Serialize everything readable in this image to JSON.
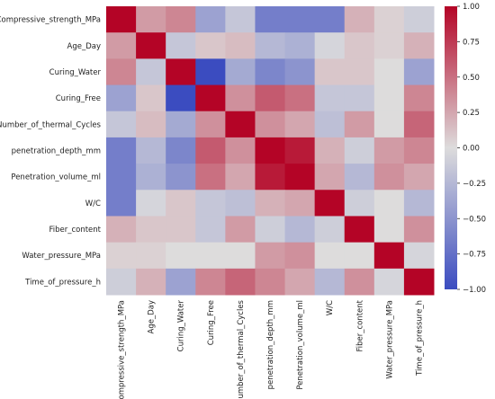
{
  "chart_data": {
    "type": "heatmap",
    "title": "",
    "xlabel": "",
    "ylabel": "",
    "variables": [
      "Compressive_strength_MPa",
      "Age_Day",
      "Curing_Water",
      "Curing_Free",
      "Number_of_thermal_Cycles",
      "penetration_depth_mm",
      "Penetration_volume_ml",
      "W/C",
      "Fiber_content",
      "Water_pressure_MPa",
      "Time_of_pressure_h"
    ],
    "matrix": [
      [
        1.0,
        0.3,
        0.4,
        -0.4,
        -0.15,
        -0.65,
        -0.65,
        -0.65,
        0.2,
        0.05,
        -0.1
      ],
      [
        0.3,
        1.0,
        -0.15,
        0.1,
        0.15,
        -0.25,
        -0.3,
        -0.05,
        0.1,
        0.05,
        0.2
      ],
      [
        0.4,
        -0.15,
        1.0,
        -1.0,
        -0.35,
        -0.6,
        -0.5,
        0.1,
        0.1,
        0.0,
        -0.4
      ],
      [
        -0.4,
        0.1,
        -1.0,
        1.0,
        0.35,
        0.6,
        0.5,
        -0.15,
        -0.15,
        0.0,
        0.4
      ],
      [
        -0.15,
        0.15,
        -0.35,
        0.35,
        1.0,
        0.35,
        0.25,
        -0.2,
        0.3,
        0.0,
        0.55
      ],
      [
        -0.65,
        -0.25,
        -0.6,
        0.6,
        0.35,
        1.0,
        0.9,
        0.2,
        -0.1,
        0.3,
        0.4
      ],
      [
        -0.65,
        -0.3,
        -0.5,
        0.5,
        0.25,
        0.9,
        1.0,
        0.25,
        -0.25,
        0.35,
        0.25
      ],
      [
        -0.65,
        -0.05,
        0.1,
        -0.15,
        -0.2,
        0.2,
        0.25,
        1.0,
        -0.1,
        0.0,
        -0.25
      ],
      [
        0.2,
        0.1,
        0.1,
        -0.15,
        0.3,
        -0.1,
        -0.25,
        -0.1,
        1.0,
        0.0,
        0.35
      ],
      [
        0.05,
        0.05,
        0.0,
        0.0,
        0.0,
        0.3,
        0.35,
        0.0,
        0.0,
        1.0,
        -0.05
      ],
      [
        -0.1,
        0.2,
        -0.4,
        0.4,
        0.55,
        0.4,
        0.25,
        -0.25,
        0.35,
        -0.05,
        1.0
      ]
    ],
    "colormap": {
      "low": "#3b4cc0",
      "mid": "#dddcdc",
      "high": "#b40426"
    },
    "vmin": -1.0,
    "vmax": 1.0,
    "colorbar_ticks": [
      "1.00",
      "0.75",
      "0.50",
      "0.25",
      "0.00",
      "−0.25",
      "−0.50",
      "−0.75",
      "−1.00"
    ],
    "colorbar_tick_values": [
      1.0,
      0.75,
      0.5,
      0.25,
      0.0,
      -0.25,
      -0.5,
      -0.75,
      -1.0
    ],
    "grid": false,
    "legend": "colorbar-right"
  }
}
